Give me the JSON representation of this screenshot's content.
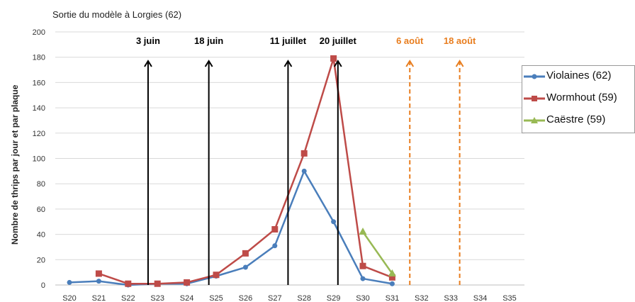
{
  "chart_data": {
    "type": "line",
    "subtitle": "Sortie du modèle à Lorgies (62)",
    "ylabel": "Nombre de thrips par jour et par plaque",
    "ylim": [
      0,
      200
    ],
    "yticks": [
      0,
      20,
      40,
      60,
      80,
      100,
      120,
      140,
      160,
      180,
      200
    ],
    "grid": true,
    "legend_position": "right",
    "categories": [
      "S20",
      "S21",
      "S22",
      "S23",
      "S24",
      "S25",
      "S26",
      "S27",
      "S28",
      "S29",
      "S30",
      "S31",
      "S32",
      "S33",
      "S34",
      "S35"
    ],
    "series": [
      {
        "name": "Violaines (62)",
        "color": "#4a7ebb",
        "marker": "circle",
        "values": [
          2,
          3,
          0,
          1,
          1,
          7,
          14,
          31,
          90,
          50,
          5,
          1,
          null,
          null,
          null,
          null
        ]
      },
      {
        "name": "Wormhout (59)",
        "color": "#be4b48",
        "marker": "square",
        "values": [
          null,
          9,
          1,
          1,
          2,
          8,
          25,
          44,
          104,
          179,
          15,
          6,
          null,
          null,
          null,
          null
        ]
      },
      {
        "name": "Caëstre (59)",
        "color": "#98b954",
        "marker": "triangle",
        "values": [
          null,
          null,
          null,
          null,
          null,
          null,
          null,
          null,
          null,
          null,
          42,
          9,
          null,
          null,
          null,
          null
        ]
      }
    ],
    "annotations": [
      {
        "label": "3 juin",
        "x": 22.68,
        "style": "solid",
        "color": "#000000"
      },
      {
        "label": "18 juin",
        "x": 24.75,
        "style": "solid",
        "color": "#000000"
      },
      {
        "label": "11 juillet",
        "x": 27.45,
        "style": "solid",
        "color": "#000000"
      },
      {
        "label": "20 juillet",
        "x": 29.15,
        "style": "solid",
        "color": "#000000"
      },
      {
        "label": "6 août",
        "x": 31.6,
        "style": "dashed",
        "color": "#e87d1e"
      },
      {
        "label": "18 août",
        "x": 33.3,
        "style": "dashed",
        "color": "#e87d1e"
      }
    ]
  }
}
